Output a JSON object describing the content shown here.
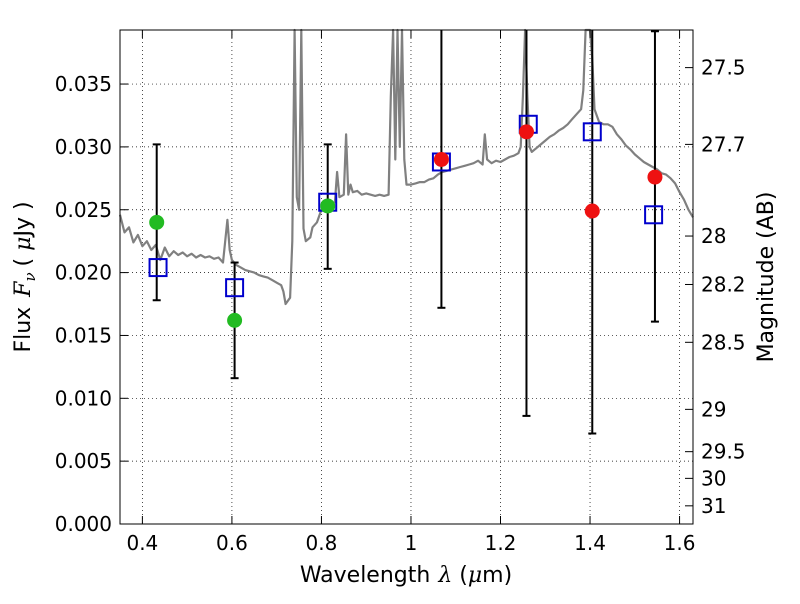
{
  "chart_data": {
    "type": "scatter",
    "xlabel": {
      "prefix": "Wavelength",
      "symbol": "λ",
      "unit_open": " (",
      "unit_mu": "μ",
      "unit_rest": "m)"
    },
    "ylabel": {
      "prefix": "Flux",
      "symbol": "F",
      "sub": "ν",
      "unit_open": "( ",
      "unit_mu": "μ",
      "unit_rest": "Jy )"
    },
    "y2label": "Magnitude (AB)",
    "xlim": [
      0.35,
      1.63
    ],
    "ylim": [
      0.0,
      0.0393
    ],
    "grid": true,
    "x_ticks": [
      0.4,
      0.6,
      0.8,
      1.0,
      1.2,
      1.4,
      1.6
    ],
    "x_tick_labels": [
      "0.4",
      "0.6",
      "0.8",
      "1",
      "1.2",
      "1.4",
      "1.6"
    ],
    "y_ticks": [
      0.0,
      0.005,
      0.01,
      0.015,
      0.02,
      0.025,
      0.03,
      0.035
    ],
    "y_tick_labels": [
      "0.000",
      "0.005",
      "0.010",
      "0.015",
      "0.020",
      "0.025",
      "0.030",
      "0.035"
    ],
    "magnitude_ticks": [
      "27.5",
      "27.7",
      "28",
      "28.2",
      "28.5",
      "29",
      "29.5",
      "30",
      "31"
    ],
    "colors": {
      "spectrum": "#808080",
      "model": "#0000cc",
      "errorbar": "#000000",
      "green": "#22bb22",
      "red": "#ee1111"
    },
    "model_fluxes": [
      {
        "x": 0.435,
        "y": 0.0204
      },
      {
        "x": 0.606,
        "y": 0.0188
      },
      {
        "x": 0.814,
        "y": 0.0256
      },
      {
        "x": 1.068,
        "y": 0.0288
      },
      {
        "x": 1.262,
        "y": 0.0318
      },
      {
        "x": 1.405,
        "y": 0.0312
      },
      {
        "x": 1.542,
        "y": 0.0246
      }
    ],
    "observed": [
      {
        "x": 0.432,
        "y": 0.024,
        "low": 0.0178,
        "high": 0.0302,
        "color": "green"
      },
      {
        "x": 0.606,
        "y": 0.0162,
        "low": 0.0116,
        "high": 0.0208,
        "color": "green"
      },
      {
        "x": 0.814,
        "y": 0.0253,
        "low": 0.0203,
        "high": 0.0302,
        "color": "green"
      },
      {
        "x": 1.068,
        "y": 0.029,
        "low": 0.0172,
        "high": 0.04,
        "color": "red"
      },
      {
        "x": 1.258,
        "y": 0.0312,
        "low": 0.0086,
        "high": 0.04,
        "color": "red"
      },
      {
        "x": 1.405,
        "y": 0.0249,
        "low": 0.0072,
        "high": 0.04,
        "color": "red"
      },
      {
        "x": 1.545,
        "y": 0.0276,
        "low": 0.0161,
        "high": 0.0392,
        "color": "red"
      }
    ],
    "spectrum": [
      [
        0.35,
        0.0246
      ],
      [
        0.36,
        0.0232
      ],
      [
        0.37,
        0.0236
      ],
      [
        0.38,
        0.0224
      ],
      [
        0.39,
        0.023
      ],
      [
        0.4,
        0.0221
      ],
      [
        0.41,
        0.0225
      ],
      [
        0.42,
        0.0218
      ],
      [
        0.43,
        0.0222
      ],
      [
        0.44,
        0.021
      ],
      [
        0.45,
        0.022
      ],
      [
        0.46,
        0.0213
      ],
      [
        0.47,
        0.0217
      ],
      [
        0.48,
        0.0214
      ],
      [
        0.49,
        0.0216
      ],
      [
        0.5,
        0.0213
      ],
      [
        0.51,
        0.0215
      ],
      [
        0.52,
        0.0212
      ],
      [
        0.53,
        0.0214
      ],
      [
        0.54,
        0.0212
      ],
      [
        0.55,
        0.0213
      ],
      [
        0.56,
        0.0211
      ],
      [
        0.57,
        0.0212
      ],
      [
        0.58,
        0.0208
      ],
      [
        0.585,
        0.0225
      ],
      [
        0.59,
        0.0242
      ],
      [
        0.595,
        0.0218
      ],
      [
        0.6,
        0.021
      ],
      [
        0.61,
        0.0206
      ],
      [
        0.62,
        0.0204
      ],
      [
        0.63,
        0.0202
      ],
      [
        0.64,
        0.0201
      ],
      [
        0.65,
        0.02
      ],
      [
        0.66,
        0.0198
      ],
      [
        0.67,
        0.0197
      ],
      [
        0.68,
        0.0196
      ],
      [
        0.69,
        0.0194
      ],
      [
        0.7,
        0.0192
      ],
      [
        0.71,
        0.019
      ],
      [
        0.715,
        0.0185
      ],
      [
        0.72,
        0.0175
      ],
      [
        0.73,
        0.018
      ],
      [
        0.735,
        0.0225
      ],
      [
        0.74,
        0.0393
      ],
      [
        0.745,
        0.026
      ],
      [
        0.75,
        0.025
      ],
      [
        0.755,
        0.0393
      ],
      [
        0.76,
        0.0235
      ],
      [
        0.765,
        0.0225
      ],
      [
        0.775,
        0.0228
      ],
      [
        0.78,
        0.0236
      ],
      [
        0.79,
        0.024
      ],
      [
        0.8,
        0.025
      ],
      [
        0.81,
        0.0252
      ],
      [
        0.82,
        0.0254
      ],
      [
        0.83,
        0.0256
      ],
      [
        0.835,
        0.028
      ],
      [
        0.84,
        0.026
      ],
      [
        0.85,
        0.0262
      ],
      [
        0.855,
        0.031
      ],
      [
        0.86,
        0.0262
      ],
      [
        0.865,
        0.027
      ],
      [
        0.87,
        0.0264
      ],
      [
        0.88,
        0.0265
      ],
      [
        0.89,
        0.0262
      ],
      [
        0.9,
        0.0263
      ],
      [
        0.91,
        0.0262
      ],
      [
        0.92,
        0.0261
      ],
      [
        0.93,
        0.0262
      ],
      [
        0.94,
        0.0261
      ],
      [
        0.95,
        0.0262
      ],
      [
        0.955,
        0.034
      ],
      [
        0.96,
        0.0393
      ],
      [
        0.965,
        0.029
      ],
      [
        0.97,
        0.0393
      ],
      [
        0.975,
        0.03
      ],
      [
        0.98,
        0.0393
      ],
      [
        0.985,
        0.029
      ],
      [
        0.99,
        0.027
      ],
      [
        1.0,
        0.027
      ],
      [
        1.01,
        0.0271
      ],
      [
        1.02,
        0.0272
      ],
      [
        1.03,
        0.0272
      ],
      [
        1.04,
        0.0274
      ],
      [
        1.05,
        0.0275
      ],
      [
        1.06,
        0.0278
      ],
      [
        1.07,
        0.028
      ],
      [
        1.08,
        0.0281
      ],
      [
        1.09,
        0.0282
      ],
      [
        1.1,
        0.0283
      ],
      [
        1.11,
        0.0284
      ],
      [
        1.12,
        0.0285
      ],
      [
        1.13,
        0.0286
      ],
      [
        1.14,
        0.0287
      ],
      [
        1.15,
        0.0289
      ],
      [
        1.16,
        0.0286
      ],
      [
        1.165,
        0.031
      ],
      [
        1.17,
        0.029
      ],
      [
        1.18,
        0.0287
      ],
      [
        1.19,
        0.0289
      ],
      [
        1.2,
        0.0288
      ],
      [
        1.21,
        0.029
      ],
      [
        1.22,
        0.0292
      ],
      [
        1.23,
        0.0293
      ],
      [
        1.24,
        0.0295
      ],
      [
        1.245,
        0.03
      ],
      [
        1.25,
        0.034
      ],
      [
        1.255,
        0.0393
      ],
      [
        1.26,
        0.034
      ],
      [
        1.265,
        0.03
      ],
      [
        1.27,
        0.0296
      ],
      [
        1.28,
        0.0299
      ],
      [
        1.29,
        0.0302
      ],
      [
        1.3,
        0.0305
      ],
      [
        1.31,
        0.0308
      ],
      [
        1.32,
        0.031
      ],
      [
        1.33,
        0.0313
      ],
      [
        1.34,
        0.0315
      ],
      [
        1.35,
        0.0318
      ],
      [
        1.36,
        0.0322
      ],
      [
        1.37,
        0.0326
      ],
      [
        1.38,
        0.033
      ],
      [
        1.385,
        0.0345
      ],
      [
        1.39,
        0.0393
      ],
      [
        1.4,
        0.0393
      ],
      [
        1.405,
        0.037
      ],
      [
        1.41,
        0.033
      ],
      [
        1.42,
        0.032
      ],
      [
        1.43,
        0.0318
      ],
      [
        1.44,
        0.0318
      ],
      [
        1.45,
        0.0316
      ],
      [
        1.46,
        0.031
      ],
      [
        1.47,
        0.0306
      ],
      [
        1.48,
        0.0301
      ],
      [
        1.49,
        0.0298
      ],
      [
        1.5,
        0.0294
      ],
      [
        1.51,
        0.0291
      ],
      [
        1.52,
        0.0288
      ],
      [
        1.53,
        0.0286
      ],
      [
        1.54,
        0.0284
      ],
      [
        1.55,
        0.0282
      ],
      [
        1.56,
        0.0279
      ],
      [
        1.57,
        0.0278
      ],
      [
        1.58,
        0.0275
      ],
      [
        1.59,
        0.0271
      ],
      [
        1.6,
        0.0264
      ],
      [
        1.61,
        0.0258
      ],
      [
        1.62,
        0.025
      ],
      [
        1.63,
        0.0244
      ]
    ]
  }
}
